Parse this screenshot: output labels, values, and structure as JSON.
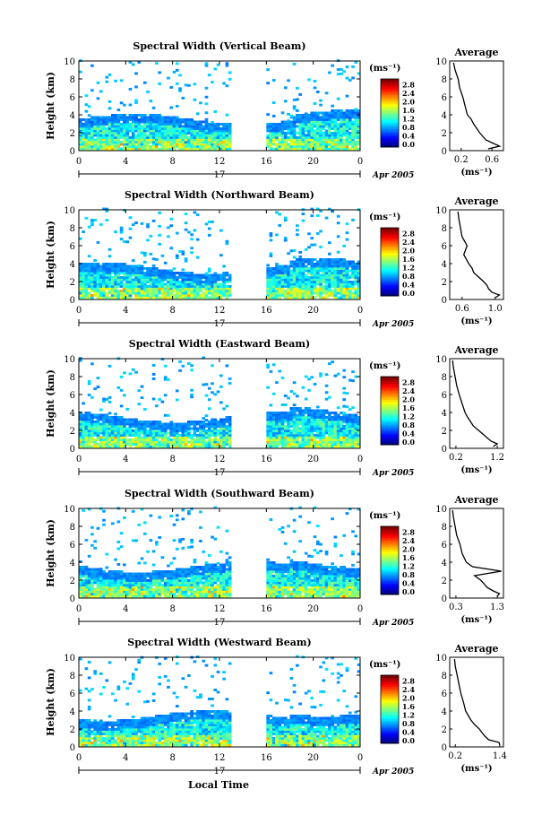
{
  "figure": {
    "xlabel": "Local Time",
    "colorbar_unit": "(ms⁻¹)",
    "date_label": "Apr 2005",
    "day_label": "17",
    "avg_title": "Average",
    "avg_unit": "(ms⁻¹)",
    "ylabel": "Height (km)"
  },
  "chart_data": [
    {
      "type": "heatmap",
      "title": "Spectral Width (Vertical Beam)",
      "ylabel": "Height (km)",
      "x_ticks": [
        "0",
        "4",
        "8",
        "12",
        "16",
        "20",
        "0"
      ],
      "y_ticks": [
        "0",
        "2",
        "4",
        "6",
        "8",
        "10"
      ],
      "xlim": [
        0,
        24
      ],
      "ylim": [
        0,
        10
      ],
      "data_gap_hours": [
        13,
        16
      ],
      "colorbar": {
        "ticks": [
          "0.0",
          "0.4",
          "0.8",
          "1.2",
          "1.6",
          "2.0",
          "2.4",
          "2.8"
        ],
        "range": [
          0,
          3.0
        ]
      },
      "average_profile": {
        "x_ticks": [
          "0.2",
          "0.6"
        ],
        "xlim": [
          0.05,
          0.75
        ],
        "height_km": [
          0.2,
          0.5,
          0.8,
          1.2,
          1.6,
          2.0,
          2.5,
          3.0,
          3.5,
          4.0,
          5.0,
          6.0,
          7.0,
          8.0,
          9.0,
          9.8
        ],
        "width_ms": [
          0.55,
          0.7,
          0.62,
          0.52,
          0.48,
          0.44,
          0.4,
          0.36,
          0.33,
          0.28,
          0.25,
          0.22,
          0.18,
          0.16,
          0.12,
          0.1
        ]
      }
    },
    {
      "type": "heatmap",
      "title": "Spectral Width (Northward Beam)",
      "ylabel": "Height (km)",
      "x_ticks": [
        "0",
        "4",
        "8",
        "12",
        "16",
        "20",
        "0"
      ],
      "y_ticks": [
        "0",
        "2",
        "4",
        "6",
        "8",
        "10"
      ],
      "xlim": [
        0,
        24
      ],
      "ylim": [
        0,
        10
      ],
      "data_gap_hours": [
        13,
        16
      ],
      "colorbar": {
        "ticks": [
          "0.0",
          "0.4",
          "0.8",
          "1.2",
          "1.6",
          "2.0",
          "2.4",
          "2.8"
        ],
        "range": [
          0,
          3.0
        ]
      },
      "average_profile": {
        "x_ticks": [
          "0.6",
          "1.0"
        ],
        "xlim": [
          0.45,
          1.1
        ],
        "height_km": [
          0.2,
          0.5,
          0.8,
          1.2,
          1.6,
          2.0,
          2.5,
          3.0,
          3.5,
          4.0,
          5.0,
          6.0,
          7.0,
          8.0,
          9.0,
          9.8
        ],
        "width_ms": [
          1.0,
          1.05,
          0.96,
          0.92,
          0.9,
          0.86,
          0.8,
          0.74,
          0.72,
          0.68,
          0.62,
          0.66,
          0.6,
          0.58,
          0.56,
          0.55
        ]
      }
    },
    {
      "type": "heatmap",
      "title": "Spectral Width (Eastward Beam)",
      "ylabel": "Height (km)",
      "x_ticks": [
        "0",
        "4",
        "8",
        "12",
        "16",
        "20",
        "0"
      ],
      "y_ticks": [
        "0",
        "2",
        "4",
        "6",
        "8",
        "10"
      ],
      "xlim": [
        0,
        24
      ],
      "ylim": [
        0,
        10
      ],
      "data_gap_hours": [
        13,
        16
      ],
      "colorbar": {
        "ticks": [
          "0.0",
          "0.4",
          "0.8",
          "1.2",
          "1.6",
          "2.0",
          "2.4",
          "2.8"
        ],
        "range": [
          0,
          3.0
        ]
      },
      "average_profile": {
        "x_ticks": [
          "0.2",
          "1.2"
        ],
        "xlim": [
          0.05,
          1.35
        ],
        "height_km": [
          0.2,
          0.5,
          0.8,
          1.2,
          1.6,
          2.0,
          2.5,
          3.0,
          3.5,
          4.0,
          5.0,
          6.0,
          7.0,
          8.0,
          9.0,
          9.8
        ],
        "width_ms": [
          1.1,
          1.2,
          1.05,
          0.95,
          0.85,
          0.75,
          0.62,
          0.55,
          0.48,
          0.42,
          0.35,
          0.28,
          0.22,
          0.18,
          0.14,
          0.12
        ]
      }
    },
    {
      "type": "heatmap",
      "title": "Spectral Width (Southward Beam)",
      "ylabel": "Height (km)",
      "x_ticks": [
        "0",
        "4",
        "8",
        "12",
        "16",
        "20",
        "0"
      ],
      "y_ticks": [
        "0",
        "2",
        "4",
        "6",
        "8",
        "10"
      ],
      "xlim": [
        0,
        24
      ],
      "ylim": [
        0,
        10
      ],
      "data_gap_hours": [
        13,
        16
      ],
      "colorbar": {
        "ticks": [
          "0.0",
          "0.4",
          "0.8",
          "1.2",
          "1.6",
          "2.0",
          "2.4",
          "2.8"
        ],
        "range": [
          0,
          3.0
        ]
      },
      "average_profile": {
        "x_ticks": [
          "0.3",
          "1.3"
        ],
        "xlim": [
          0.15,
          1.45
        ],
        "height_km": [
          0.2,
          0.5,
          0.8,
          1.2,
          1.6,
          2.0,
          2.5,
          3.0,
          3.5,
          4.0,
          5.0,
          6.0,
          7.0,
          8.0,
          9.0,
          9.8
        ],
        "width_ms": [
          1.3,
          1.35,
          1.2,
          1.05,
          0.98,
          0.9,
          0.75,
          1.4,
          0.7,
          0.55,
          0.45,
          0.4,
          0.32,
          0.28,
          0.24,
          0.22
        ]
      }
    },
    {
      "type": "heatmap",
      "title": "Spectral Width (Westward Beam)",
      "ylabel": "Height (km)",
      "x_ticks": [
        "0",
        "4",
        "8",
        "12",
        "16",
        "20",
        "0"
      ],
      "y_ticks": [
        "0",
        "2",
        "4",
        "6",
        "8",
        "10"
      ],
      "xlim": [
        0,
        24
      ],
      "ylim": [
        0,
        10
      ],
      "data_gap_hours": [
        13,
        16
      ],
      "colorbar": {
        "ticks": [
          "0.0",
          "0.4",
          "0.8",
          "1.2",
          "1.6",
          "2.0",
          "2.4",
          "2.8"
        ],
        "range": [
          0,
          3.0
        ]
      },
      "average_profile": {
        "x_ticks": [
          "0.2",
          "1.4"
        ],
        "xlim": [
          0.05,
          1.5
        ],
        "height_km": [
          0.2,
          0.5,
          0.8,
          1.2,
          1.6,
          2.0,
          2.5,
          3.0,
          3.5,
          4.0,
          5.0,
          6.0,
          7.0,
          8.0,
          9.0,
          9.8
        ],
        "width_ms": [
          1.4,
          1.38,
          1.1,
          1.0,
          0.92,
          0.85,
          0.72,
          0.62,
          0.55,
          0.48,
          0.42,
          0.35,
          0.3,
          0.25,
          0.2,
          0.18
        ]
      }
    }
  ]
}
